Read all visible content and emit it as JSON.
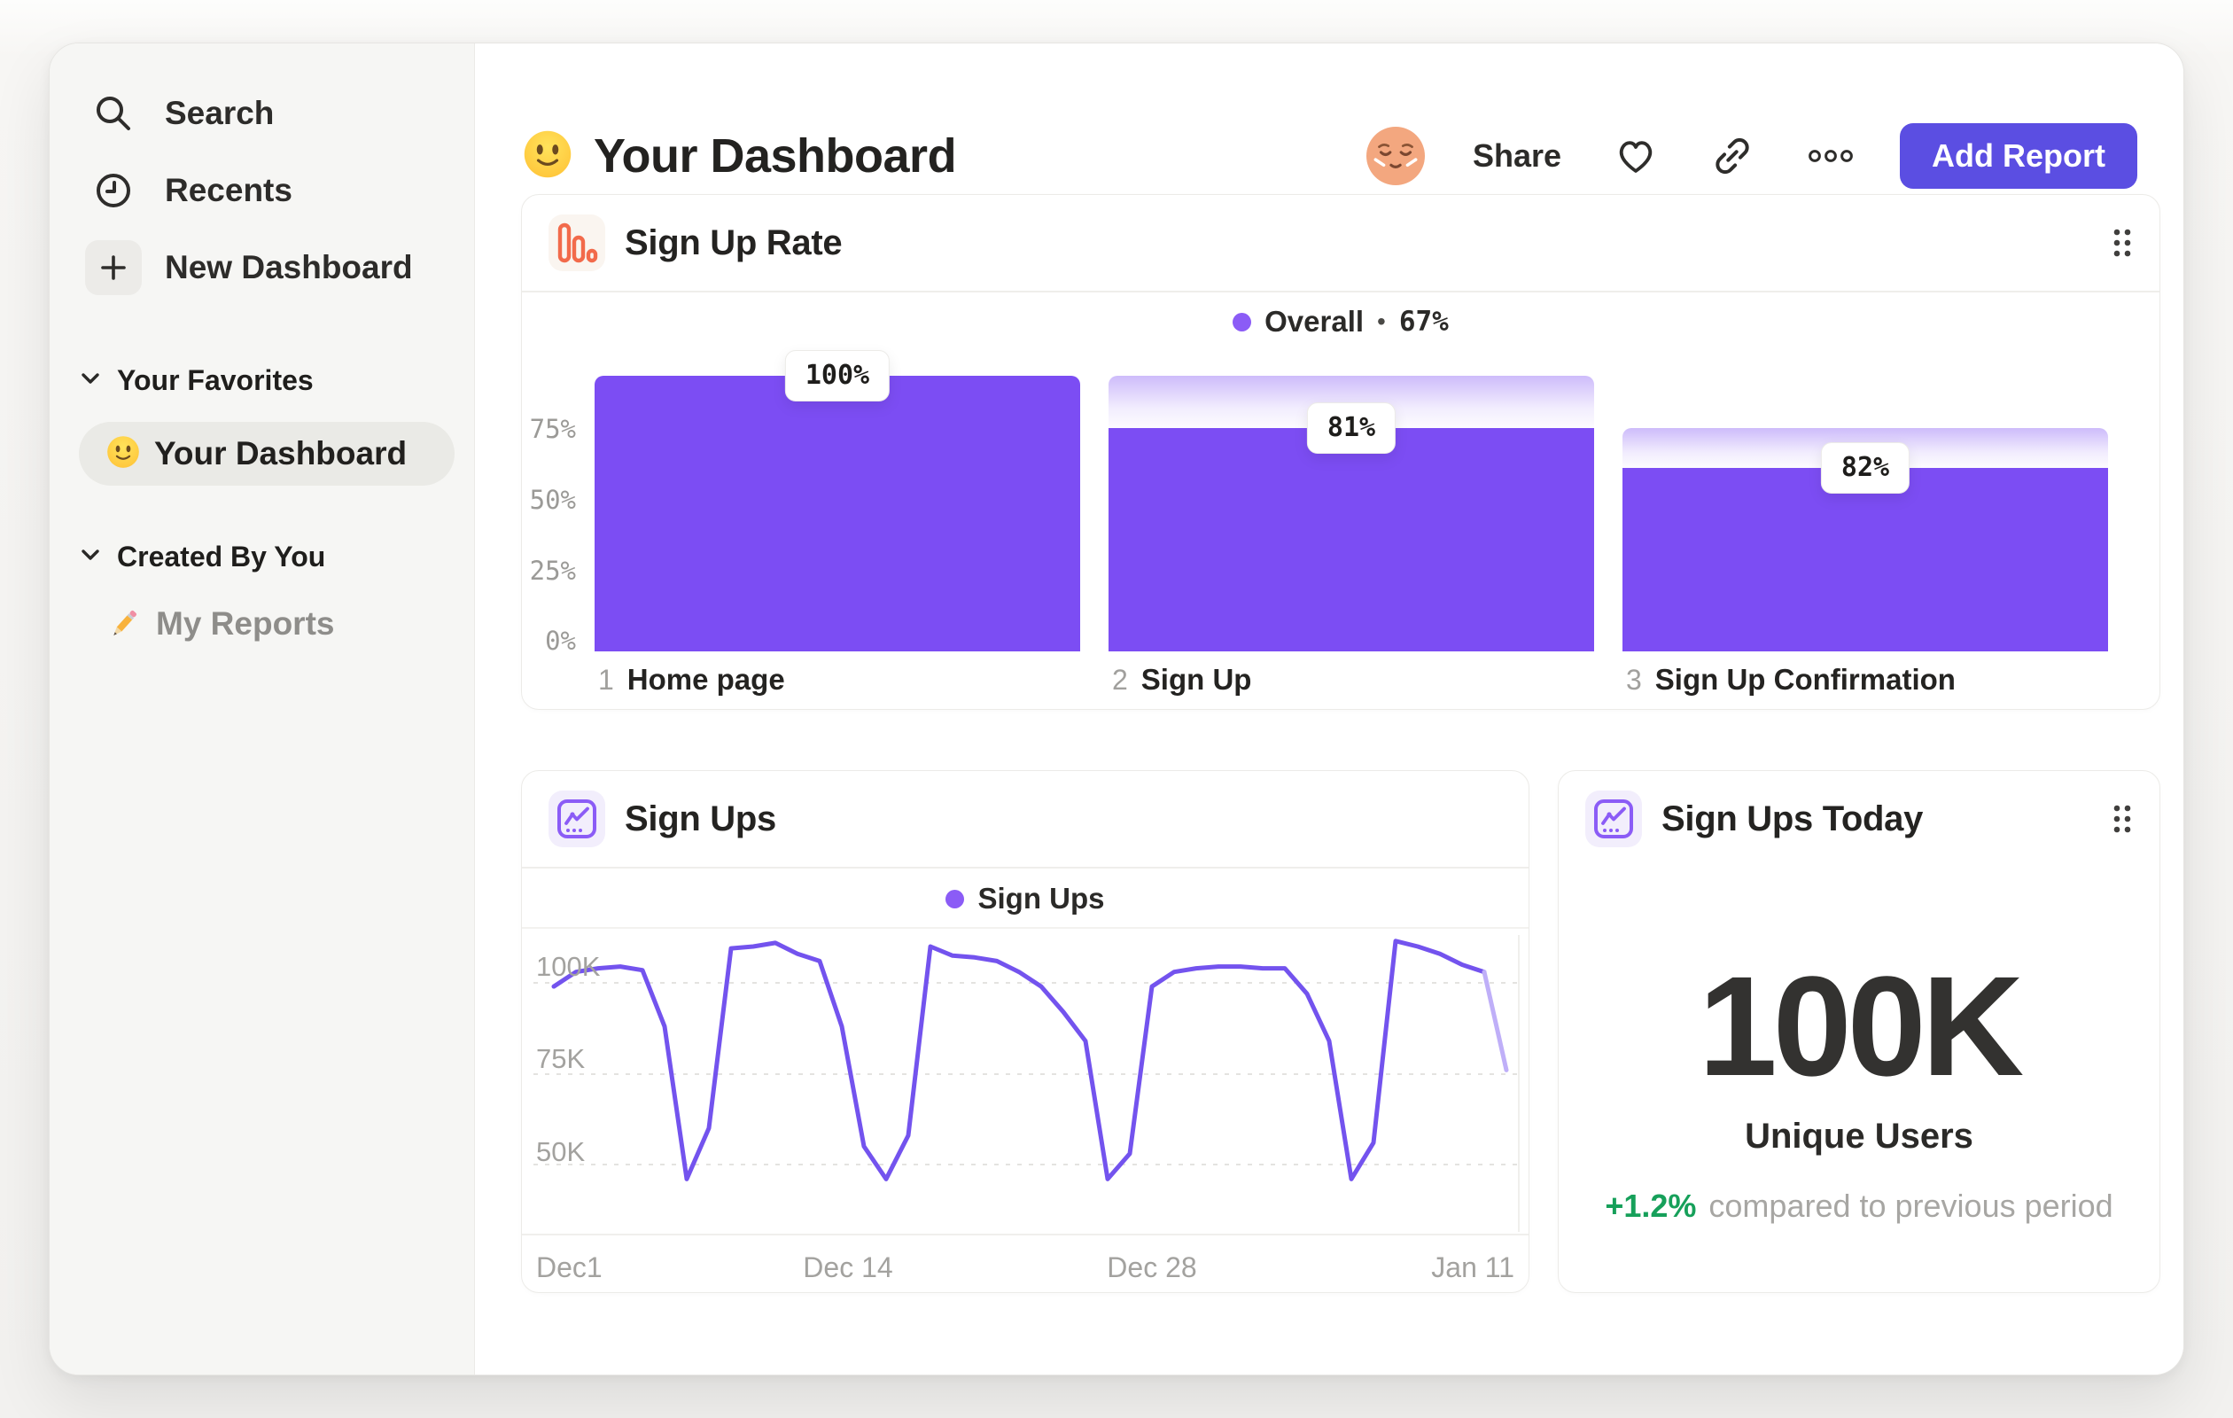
{
  "header": {
    "title": "Your Dashboard",
    "share_label": "Share",
    "add_report_label": "Add Report"
  },
  "sidebar": {
    "nav": [
      {
        "icon": "search-icon",
        "label": "Search"
      },
      {
        "icon": "clock-icon",
        "label": "Recents"
      },
      {
        "icon": "plus-icon",
        "label": "New Dashboard"
      }
    ],
    "sections": [
      {
        "title": "Your Favorites",
        "items": [
          {
            "icon": "smiley-emoji",
            "label": "Your Dashboard",
            "active": true
          }
        ]
      },
      {
        "title": "Created By You",
        "items": [
          {
            "icon": "pencil-emoji",
            "label": "My Reports",
            "active": false
          }
        ]
      }
    ]
  },
  "signup_rate_card": {
    "title": "Sign Up Rate",
    "legend_label": "Overall",
    "legend_separator": "•",
    "legend_value": "67%",
    "y_ticks": [
      "75%",
      "50%",
      "25%",
      "0%"
    ]
  },
  "signups_card": {
    "title": "Sign Ups",
    "legend_label": "Sign Ups",
    "y_ticks": [
      "100K",
      "75K",
      "50K"
    ],
    "x_ticks": [
      "Dec1",
      "Dec 14",
      "Dec 28",
      "Jan 11"
    ]
  },
  "signups_today_card": {
    "title": "Sign Ups Today",
    "metric": "100K",
    "metric_label": "Unique Users",
    "delta": "+1.2%",
    "delta_note": "compared to previous period"
  },
  "colors": {
    "bar_purple": "#7C4DF3",
    "button_purple": "#5B4EE2",
    "legend_dot_purple": "#8B5CF6",
    "line_purple": "#7353EE",
    "line_faded_purple": "#BFAFF8",
    "icon_orange": "#F26A4B",
    "delta_green": "#16A05A"
  },
  "chart_data": [
    {
      "type": "bar",
      "subtype": "funnel",
      "title": "Sign Up Rate",
      "categories": [
        "Home page",
        "Sign Up",
        "Sign Up Confirmation"
      ],
      "step_labels": [
        "1",
        "2",
        "3"
      ],
      "values": [
        100,
        81,
        82
      ],
      "badge_labels": [
        "100%",
        "81%",
        "82%"
      ],
      "cumulative_pct": [
        100,
        81,
        66.4
      ],
      "overall_label": "Overall",
      "overall_value_pct": 67,
      "y_ticks_pct": [
        75,
        50,
        25,
        0
      ],
      "ylim": [
        0,
        100
      ],
      "legend_position": "top-center",
      "bar_color": "#7C4DF3"
    },
    {
      "type": "line",
      "title": "Sign Ups",
      "series_name": "Sign Ups",
      "unit": "thousands",
      "x": [
        "Dec 1",
        "Dec 2",
        "Dec 3",
        "Dec 4",
        "Dec 5",
        "Dec 6",
        "Dec 7",
        "Dec 8",
        "Dec 9",
        "Dec 10",
        "Dec 11",
        "Dec 12",
        "Dec 13",
        "Dec 14",
        "Dec 15",
        "Dec 16",
        "Dec 17",
        "Dec 18",
        "Dec 19",
        "Dec 20",
        "Dec 21",
        "Dec 22",
        "Dec 23",
        "Dec 24",
        "Dec 25",
        "Dec 26",
        "Dec 27",
        "Dec 28",
        "Dec 29",
        "Dec 30",
        "Dec 31",
        "Jan 1",
        "Jan 2",
        "Jan 3",
        "Jan 4",
        "Jan 5",
        "Jan 6",
        "Jan 7",
        "Jan 8",
        "Jan 9",
        "Jan 10",
        "Jan 11",
        "Jan 12",
        "Jan 13"
      ],
      "values": [
        99,
        103,
        104,
        104.5,
        103.5,
        88,
        46,
        60,
        109.5,
        110,
        111,
        108,
        106,
        88,
        55,
        46,
        58,
        110,
        107.5,
        107,
        106,
        103,
        99,
        92,
        84,
        46,
        53,
        99,
        103,
        104,
        104.5,
        104.5,
        104,
        104,
        97,
        84,
        46,
        56,
        111.5,
        110,
        108,
        105,
        103,
        76
      ],
      "faded_tail_points": 1,
      "x_tick_labels": [
        "Dec1",
        "Dec 14",
        "Dec 28",
        "Jan 11"
      ],
      "y_tick_labels": [
        "100K",
        "75K",
        "50K"
      ],
      "y_gridlines_at": [
        100,
        75,
        50
      ],
      "ylim": [
        31,
        114
      ],
      "grid": "dashed-horizontal",
      "legend_position": "top-center",
      "line_color": "#7353EE"
    }
  ]
}
